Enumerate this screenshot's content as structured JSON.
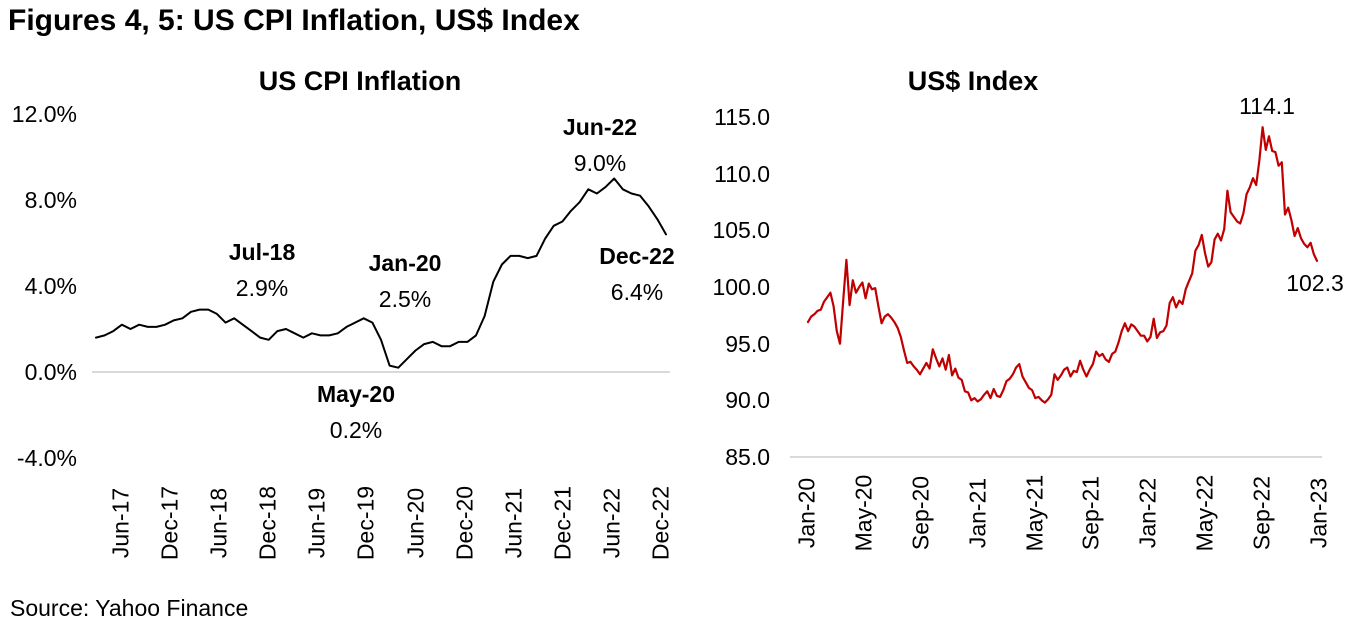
{
  "page": {
    "title": "Figures 4, 5: US CPI Inflation, US$ Index",
    "source": "Source: Yahoo Finance",
    "background": "#FFFFFF",
    "text_color": "#000000"
  },
  "chart_data": [
    {
      "id": "cpi",
      "type": "line",
      "title": "US CPI Inflation",
      "series_name": "US CPI Inflation YoY",
      "frequency": "monthly",
      "start": "Jun-17",
      "end": "Dec-22",
      "line_color": "#000000",
      "baseline_color": "#D9D9D9",
      "baseline_value": 0,
      "ylim": [
        -4,
        12
      ],
      "y_ticks": [
        12,
        8,
        4,
        0,
        -4
      ],
      "y_tick_labels": [
        "12.0%",
        "8.0%",
        "4.0%",
        "0.0%",
        "-4.0%"
      ],
      "x_tick_labels": [
        "Jun-17",
        "Dec-17",
        "Jun-18",
        "Dec-18",
        "Jun-19",
        "Dec-19",
        "Jun-20",
        "Dec-20",
        "Jun-21",
        "Dec-21",
        "Jun-22",
        "Dec-22"
      ],
      "values": [
        1.6,
        1.7,
        1.9,
        2.2,
        2.0,
        2.2,
        2.1,
        2.1,
        2.2,
        2.4,
        2.5,
        2.8,
        2.9,
        2.9,
        2.7,
        2.3,
        2.5,
        2.2,
        1.9,
        1.6,
        1.5,
        1.9,
        2.0,
        1.8,
        1.6,
        1.8,
        1.7,
        1.7,
        1.8,
        2.1,
        2.3,
        2.5,
        2.3,
        1.5,
        0.3,
        0.2,
        0.6,
        1.0,
        1.3,
        1.4,
        1.2,
        1.2,
        1.4,
        1.4,
        1.7,
        2.6,
        4.2,
        5.0,
        5.4,
        5.4,
        5.3,
        5.4,
        6.2,
        6.8,
        7.0,
        7.5,
        7.9,
        8.5,
        8.3,
        8.6,
        9.0,
        8.5,
        8.3,
        8.2,
        7.7,
        7.1,
        6.4
      ],
      "annotations": [
        {
          "label": "Jul-18",
          "value": "2.9%"
        },
        {
          "label": "Jan-20",
          "value": "2.5%"
        },
        {
          "label": "May-20",
          "value": "0.2%"
        },
        {
          "label": "Jun-22",
          "value": "9.0%"
        },
        {
          "label": "Dec-22",
          "value": "6.4%"
        }
      ]
    },
    {
      "id": "dxy",
      "type": "line",
      "title": "US$ Index",
      "series_name": "US Dollar Index (DXY)",
      "frequency": "weekly-approx",
      "start": "Jan-20",
      "end": "Jan-23",
      "line_color": "#C00000",
      "baseline_color": "#D9D9D9",
      "baseline_value": 85,
      "ylim": [
        85,
        115
      ],
      "y_ticks": [
        115,
        110,
        105,
        100,
        95,
        90,
        85
      ],
      "y_tick_labels": [
        "115.0",
        "110.0",
        "105.0",
        "100.0",
        "95.0",
        "90.0",
        "85.0"
      ],
      "x_tick_labels": [
        "Jan-20",
        "May-20",
        "Sep-20",
        "Jan-21",
        "May-21",
        "Sep-21",
        "Jan-22",
        "May-22",
        "Sep-22",
        "Jan-23"
      ],
      "values": [
        96.9,
        97.4,
        97.6,
        97.9,
        98.0,
        98.7,
        99.1,
        99.5,
        98.3,
        96.1,
        95.0,
        98.8,
        102.4,
        98.4,
        100.6,
        99.5,
        100.0,
        100.4,
        99.0,
        100.3,
        99.8,
        99.9,
        98.3,
        96.8,
        97.4,
        97.6,
        97.3,
        96.9,
        96.4,
        95.6,
        94.4,
        93.3,
        93.4,
        93.0,
        92.7,
        92.3,
        92.8,
        93.3,
        92.8,
        94.5,
        93.7,
        93.0,
        93.7,
        92.7,
        94.0,
        92.2,
        92.8,
        92.0,
        91.8,
        90.8,
        90.7,
        90.0,
        90.2,
        89.9,
        90.1,
        90.5,
        90.8,
        90.2,
        91.0,
        90.4,
        90.3,
        90.9,
        91.7,
        91.9,
        92.3,
        92.9,
        93.2,
        92.1,
        91.6,
        91.1,
        90.9,
        90.2,
        90.3,
        90.0,
        89.8,
        90.1,
        90.5,
        92.3,
        91.8,
        92.2,
        92.7,
        92.9,
        92.1,
        92.6,
        92.5,
        93.5,
        92.7,
        92.1,
        92.7,
        93.2,
        94.3,
        93.9,
        94.1,
        93.6,
        93.4,
        94.1,
        94.3,
        95.1,
        96.1,
        96.8,
        96.1,
        96.7,
        96.5,
        96.1,
        95.7,
        95.7,
        95.2,
        95.6,
        97.2,
        95.5,
        96.0,
        96.1,
        96.6,
        98.6,
        99.1,
        98.2,
        98.8,
        98.5,
        99.8,
        100.5,
        101.2,
        103.2,
        103.7,
        104.6,
        103.0,
        101.8,
        102.2,
        104.2,
        104.7,
        104.1,
        105.1,
        108.5,
        106.6,
        106.2,
        105.8,
        105.6,
        106.5,
        108.2,
        108.8,
        109.6,
        109.0,
        111.2,
        114.1,
        112.1,
        113.3,
        112.0,
        111.9,
        110.7,
        111.0,
        106.4,
        107.0,
        105.9,
        104.5,
        105.2,
        104.3,
        103.8,
        103.5,
        103.9,
        102.9,
        102.3
      ],
      "annotations": [
        {
          "label": "",
          "value": "114.1"
        },
        {
          "label": "",
          "value": "102.3"
        }
      ]
    }
  ]
}
